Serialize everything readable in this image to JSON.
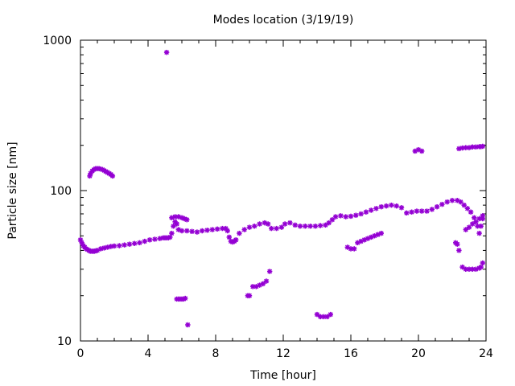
{
  "chart_data": {
    "type": "scatter",
    "title": "Modes location (3/19/19)",
    "xlabel": "Time [hour]",
    "ylabel": "Particle size [nm]",
    "xlim": [
      0,
      24
    ],
    "ylim": [
      10,
      1000
    ],
    "yscale": "log",
    "x_ticks": [
      0,
      4,
      8,
      12,
      16,
      20,
      24
    ],
    "x_tick_labels": [
      "0",
      "4",
      "8",
      "12",
      "16",
      "20",
      "24"
    ],
    "y_ticks": [
      10,
      100,
      1000
    ],
    "y_tick_labels": [
      "10",
      "100",
      "1000"
    ],
    "grid": false,
    "legend": "none",
    "marker_color": "#9400d3",
    "series": [
      {
        "x": [
          0.0,
          0.08,
          0.17,
          0.25,
          0.33,
          0.42,
          0.5,
          0.58,
          0.67,
          0.75,
          0.83,
          0.92,
          1.0,
          1.2,
          1.4,
          1.6,
          1.8,
          2.0,
          2.3,
          2.6,
          2.9,
          3.2,
          3.5,
          3.8,
          4.1,
          4.4,
          4.7,
          4.9,
          5.0,
          5.1,
          5.2,
          5.3,
          5.4,
          5.5,
          5.6,
          5.7,
          5.8,
          6.0,
          6.3,
          6.6,
          6.9,
          7.2,
          7.5,
          7.8,
          8.1,
          8.4,
          8.6,
          8.7,
          8.8,
          8.9,
          9.0,
          9.1,
          9.2,
          9.4,
          9.7,
          10.0,
          10.3,
          10.6,
          10.9,
          11.1,
          11.3,
          11.6,
          11.9,
          12.1,
          12.4,
          12.7,
          13.0,
          13.3,
          13.6,
          13.9,
          14.2,
          14.5,
          14.7,
          14.9,
          15.1,
          15.4,
          15.7,
          16.0,
          16.3,
          16.6,
          16.9,
          17.2,
          17.5,
          17.8,
          18.1,
          18.4,
          18.7,
          19.0,
          19.3,
          19.6,
          19.9,
          20.2,
          20.5,
          20.8,
          21.1,
          21.4,
          21.7,
          22.0,
          22.3,
          22.5,
          22.7,
          22.9,
          23.1,
          23.3,
          23.5,
          23.6,
          23.7,
          23.8
        ],
        "y": [
          47,
          45,
          43,
          42,
          41,
          40.5,
          40,
          39.5,
          39.5,
          39.5,
          39.5,
          39.8,
          40,
          41,
          41.5,
          42,
          42.5,
          42.8,
          43,
          43.5,
          44,
          44.5,
          45,
          46,
          47,
          47.5,
          48,
          48.5,
          48.5,
          48.5,
          48.5,
          49,
          52,
          58,
          62,
          60,
          55,
          54,
          54,
          53.5,
          53,
          54,
          54.5,
          55,
          55.5,
          56,
          56,
          54,
          49,
          46,
          45.5,
          46,
          47,
          52,
          55,
          57,
          58,
          60,
          61,
          60,
          56,
          56,
          57,
          60,
          61,
          59,
          58,
          58,
          58,
          58,
          58.5,
          59,
          61,
          64,
          67,
          68,
          67,
          67.5,
          68.5,
          70,
          72,
          74,
          76,
          78,
          79,
          80,
          79,
          77,
          71,
          72,
          73,
          73,
          73,
          75,
          78,
          81,
          84,
          86,
          86,
          84,
          80,
          76,
          72,
          66,
          58,
          52,
          58,
          65
        ]
      },
      {
        "x": [
          0.55,
          0.6,
          0.7,
          0.8,
          0.9,
          1.0,
          1.1,
          1.2,
          1.3,
          1.4,
          1.5,
          1.6,
          1.7,
          1.8,
          1.9
        ],
        "y": [
          125,
          130,
          135,
          138,
          140,
          140,
          140,
          139,
          138,
          136,
          134,
          132,
          130,
          128,
          125
        ]
      },
      {
        "x": [
          5.1
        ],
        "y": [
          830
        ]
      },
      {
        "x": [
          5.4,
          5.6,
          5.8,
          6.0,
          6.15,
          6.3
        ],
        "y": [
          66,
          67,
          67,
          66,
          65,
          64
        ]
      },
      {
        "x": [
          5.7,
          5.8,
          5.9,
          6.0,
          6.1,
          6.2,
          6.35
        ],
        "y": [
          19,
          19,
          19,
          19,
          19,
          19.2,
          12.8
        ]
      },
      {
        "x": [
          9.9,
          10.0,
          10.2,
          10.4,
          10.6,
          10.8,
          11.0,
          11.2
        ],
        "y": [
          20,
          20,
          23,
          23,
          23.5,
          24,
          25,
          29
        ]
      },
      {
        "x": [
          14.0,
          14.2,
          14.4,
          14.6,
          14.8
        ],
        "y": [
          15,
          14.5,
          14.5,
          14.5,
          15
        ]
      },
      {
        "x": [
          15.8,
          16.0,
          16.2,
          16.4,
          16.6,
          16.8,
          17.0,
          17.2,
          17.4,
          17.6,
          17.8
        ],
        "y": [
          42,
          41,
          41,
          45,
          46,
          47,
          48,
          49,
          50,
          51,
          52
        ]
      },
      {
        "x": [
          19.8,
          20.0,
          20.2
        ],
        "y": [
          183,
          187,
          183
        ]
      },
      {
        "x": [
          22.2,
          22.3,
          22.4,
          22.6,
          22.8,
          23.0,
          23.2,
          23.4,
          23.6,
          23.7,
          23.8
        ],
        "y": [
          45,
          44,
          40,
          31,
          30,
          30,
          30,
          30,
          30.5,
          31,
          33
        ]
      },
      {
        "x": [
          22.4,
          22.6,
          22.8,
          23.0,
          23.2,
          23.4,
          23.6,
          23.7,
          23.8
        ],
        "y": [
          190,
          192,
          193,
          193,
          195,
          195,
          196,
          196,
          197
        ]
      },
      {
        "x": [
          22.8,
          23.0,
          23.2,
          23.4,
          23.6,
          23.8
        ],
        "y": [
          55,
          57,
          60,
          62,
          65,
          68
        ]
      }
    ]
  }
}
